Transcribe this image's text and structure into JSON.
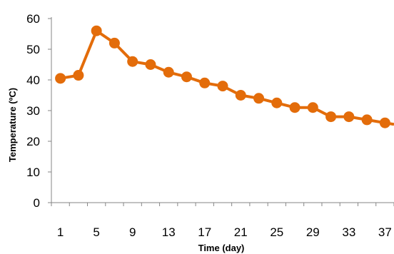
{
  "chart_data": {
    "type": "line",
    "xlabel": "Time (day)",
    "ylabel": "Temperature (ºC)",
    "x": [
      1,
      3,
      5,
      7,
      9,
      11,
      13,
      15,
      17,
      19,
      21,
      23,
      25,
      27,
      29,
      31,
      33,
      35,
      37
    ],
    "x_ticks": [
      "1",
      "5",
      "9",
      "13",
      "17",
      "21",
      "25",
      "29",
      "33",
      "37"
    ],
    "y_ticks": [
      "0",
      "10",
      "20",
      "30",
      "40",
      "50",
      "60"
    ],
    "ylim": [
      0,
      60
    ],
    "xlim": [
      0,
      38
    ],
    "grid": false,
    "series": [
      {
        "color": "#E36C0A",
        "values": [
          40.5,
          41.5,
          56,
          52,
          46,
          45,
          42.5,
          41,
          39,
          38,
          35,
          34,
          32.5,
          31,
          31,
          28,
          28,
          27,
          26
        ]
      }
    ]
  }
}
